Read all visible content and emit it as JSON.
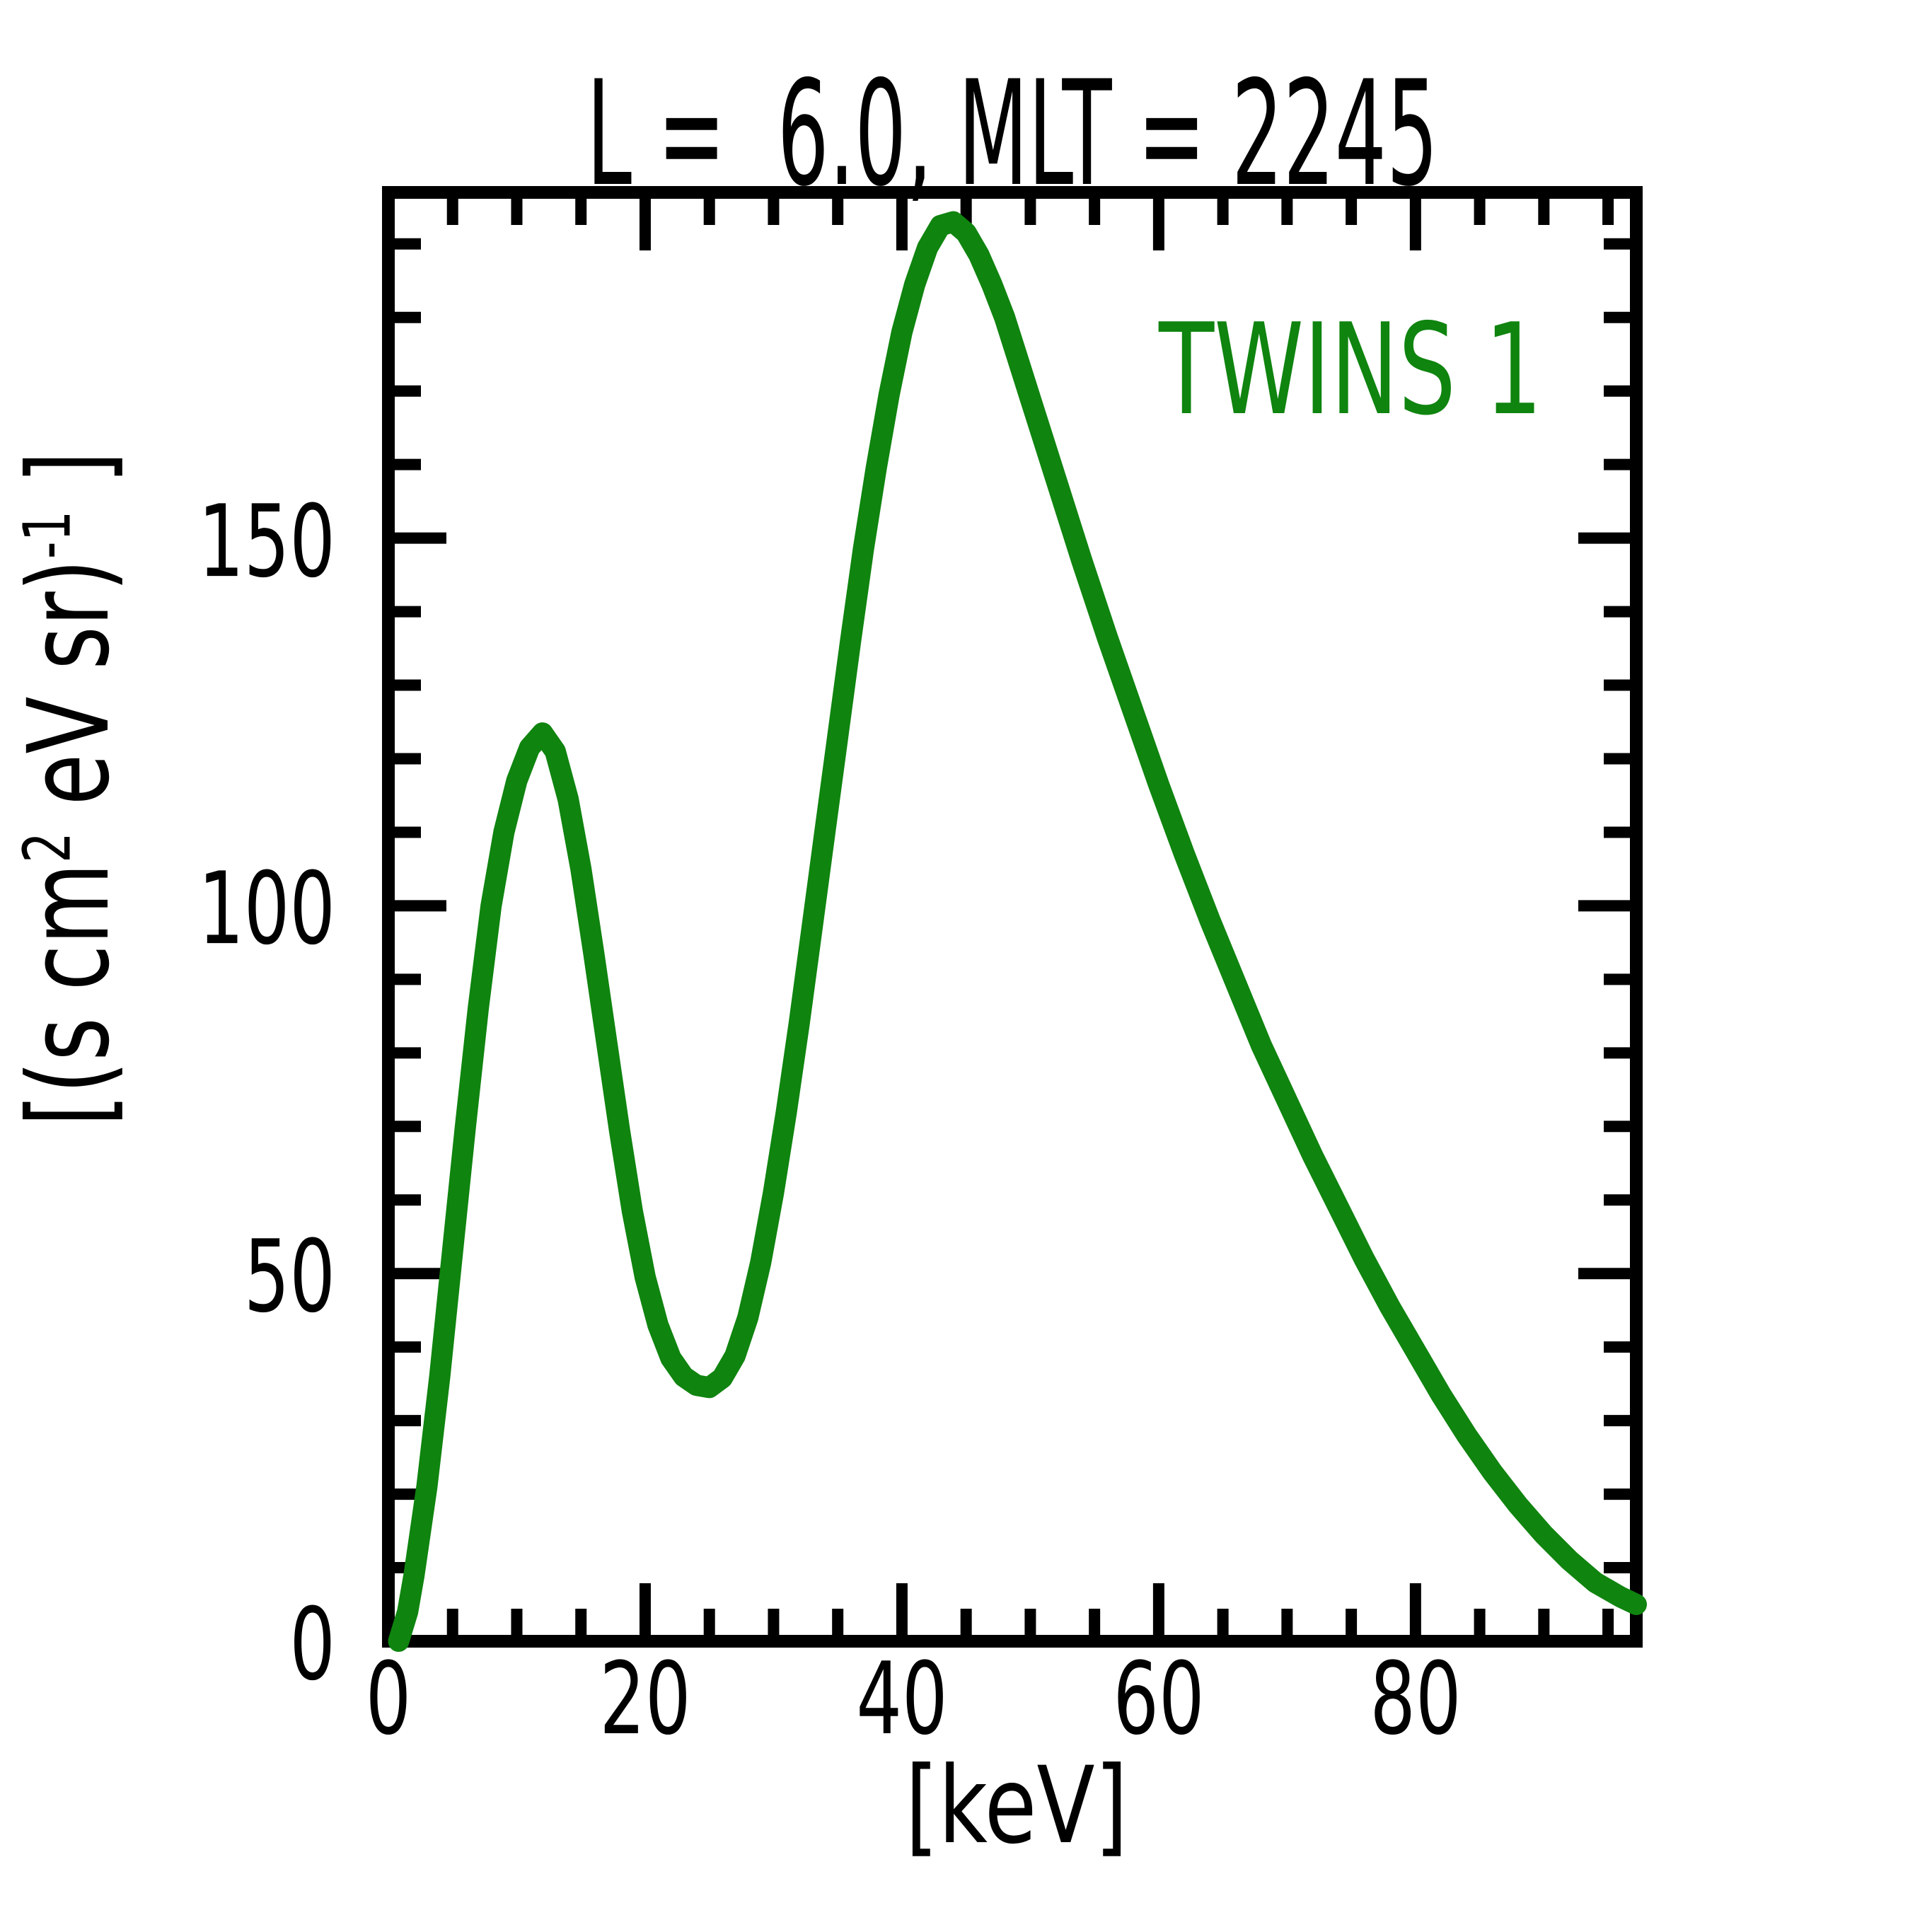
{
  "figure": {
    "background": "#ffffff",
    "text_color": "#000000"
  },
  "chart_data": {
    "type": "line",
    "title": "L =  6.0, MLT = 2245",
    "xlabel": "[keV]",
    "ylabel": "[(s cm2 eV sr)-1 ]",
    "ylabel_parts": {
      "pre": "[(s cm",
      "sup1": "2",
      "mid": " eV sr)",
      "sup2": "-1",
      "post": " ]"
    },
    "legend": {
      "label": "TWINS 1",
      "color": "#0f840f",
      "position": "upper right inside"
    },
    "grid": false,
    "xlim": [
      0,
      97.2
    ],
    "ylim": [
      0,
      197
    ],
    "x_ticks": {
      "values": [
        0,
        20,
        40,
        60,
        80
      ],
      "labels": [
        "0",
        "20",
        "40",
        "60",
        "80"
      ],
      "minor_step": 5
    },
    "y_ticks": {
      "values": [
        0,
        50,
        100,
        150
      ],
      "labels": [
        "0",
        "50",
        "100",
        "150"
      ],
      "minor_step": 10
    },
    "series": [
      {
        "name": "TWINS 1",
        "color": "#0f840f",
        "points": [
          [
            0.8,
            0
          ],
          [
            1.5,
            4
          ],
          [
            2,
            9
          ],
          [
            3,
            21
          ],
          [
            4,
            36
          ],
          [
            5,
            53
          ],
          [
            6,
            70
          ],
          [
            7,
            86
          ],
          [
            8,
            100
          ],
          [
            9,
            110
          ],
          [
            10,
            117
          ],
          [
            11,
            121.5
          ],
          [
            12,
            123.5
          ],
          [
            13,
            121
          ],
          [
            14,
            114.5
          ],
          [
            15,
            105
          ],
          [
            16,
            93.5
          ],
          [
            17,
            81.5
          ],
          [
            18,
            69.5
          ],
          [
            19,
            58.5
          ],
          [
            20,
            49.5
          ],
          [
            21,
            43
          ],
          [
            22,
            38.5
          ],
          [
            23,
            36
          ],
          [
            24,
            34.8
          ],
          [
            25,
            34.5
          ],
          [
            26,
            35.8
          ],
          [
            27,
            38.8
          ],
          [
            28,
            44
          ],
          [
            29,
            51.5
          ],
          [
            30,
            61
          ],
          [
            31,
            72
          ],
          [
            32,
            84
          ],
          [
            33,
            97
          ],
          [
            34,
            110
          ],
          [
            35,
            123
          ],
          [
            36,
            136
          ],
          [
            37,
            148.5
          ],
          [
            38,
            159.5
          ],
          [
            39,
            169.5
          ],
          [
            40,
            178
          ],
          [
            41,
            184.5
          ],
          [
            42,
            189.5
          ],
          [
            43,
            192.5
          ],
          [
            44,
            193
          ],
          [
            45,
            191.5
          ],
          [
            46,
            188.5
          ],
          [
            47,
            184.5
          ],
          [
            48,
            180
          ],
          [
            49,
            174.5
          ],
          [
            50,
            169
          ],
          [
            52,
            158
          ],
          [
            54,
            147
          ],
          [
            56,
            136.5
          ],
          [
            58,
            126.5
          ],
          [
            60,
            116.5
          ],
          [
            62,
            107
          ],
          [
            64,
            98
          ],
          [
            66,
            89.5
          ],
          [
            68,
            81
          ],
          [
            70,
            73.5
          ],
          [
            72,
            66
          ],
          [
            74,
            59
          ],
          [
            76,
            52
          ],
          [
            78,
            45.5
          ],
          [
            80,
            39.5
          ],
          [
            82,
            33.5
          ],
          [
            84,
            28
          ],
          [
            86,
            23
          ],
          [
            88,
            18.5
          ],
          [
            90,
            14.5
          ],
          [
            92,
            11
          ],
          [
            94,
            8
          ],
          [
            96,
            6
          ],
          [
            97.2,
            5
          ]
        ]
      }
    ]
  }
}
